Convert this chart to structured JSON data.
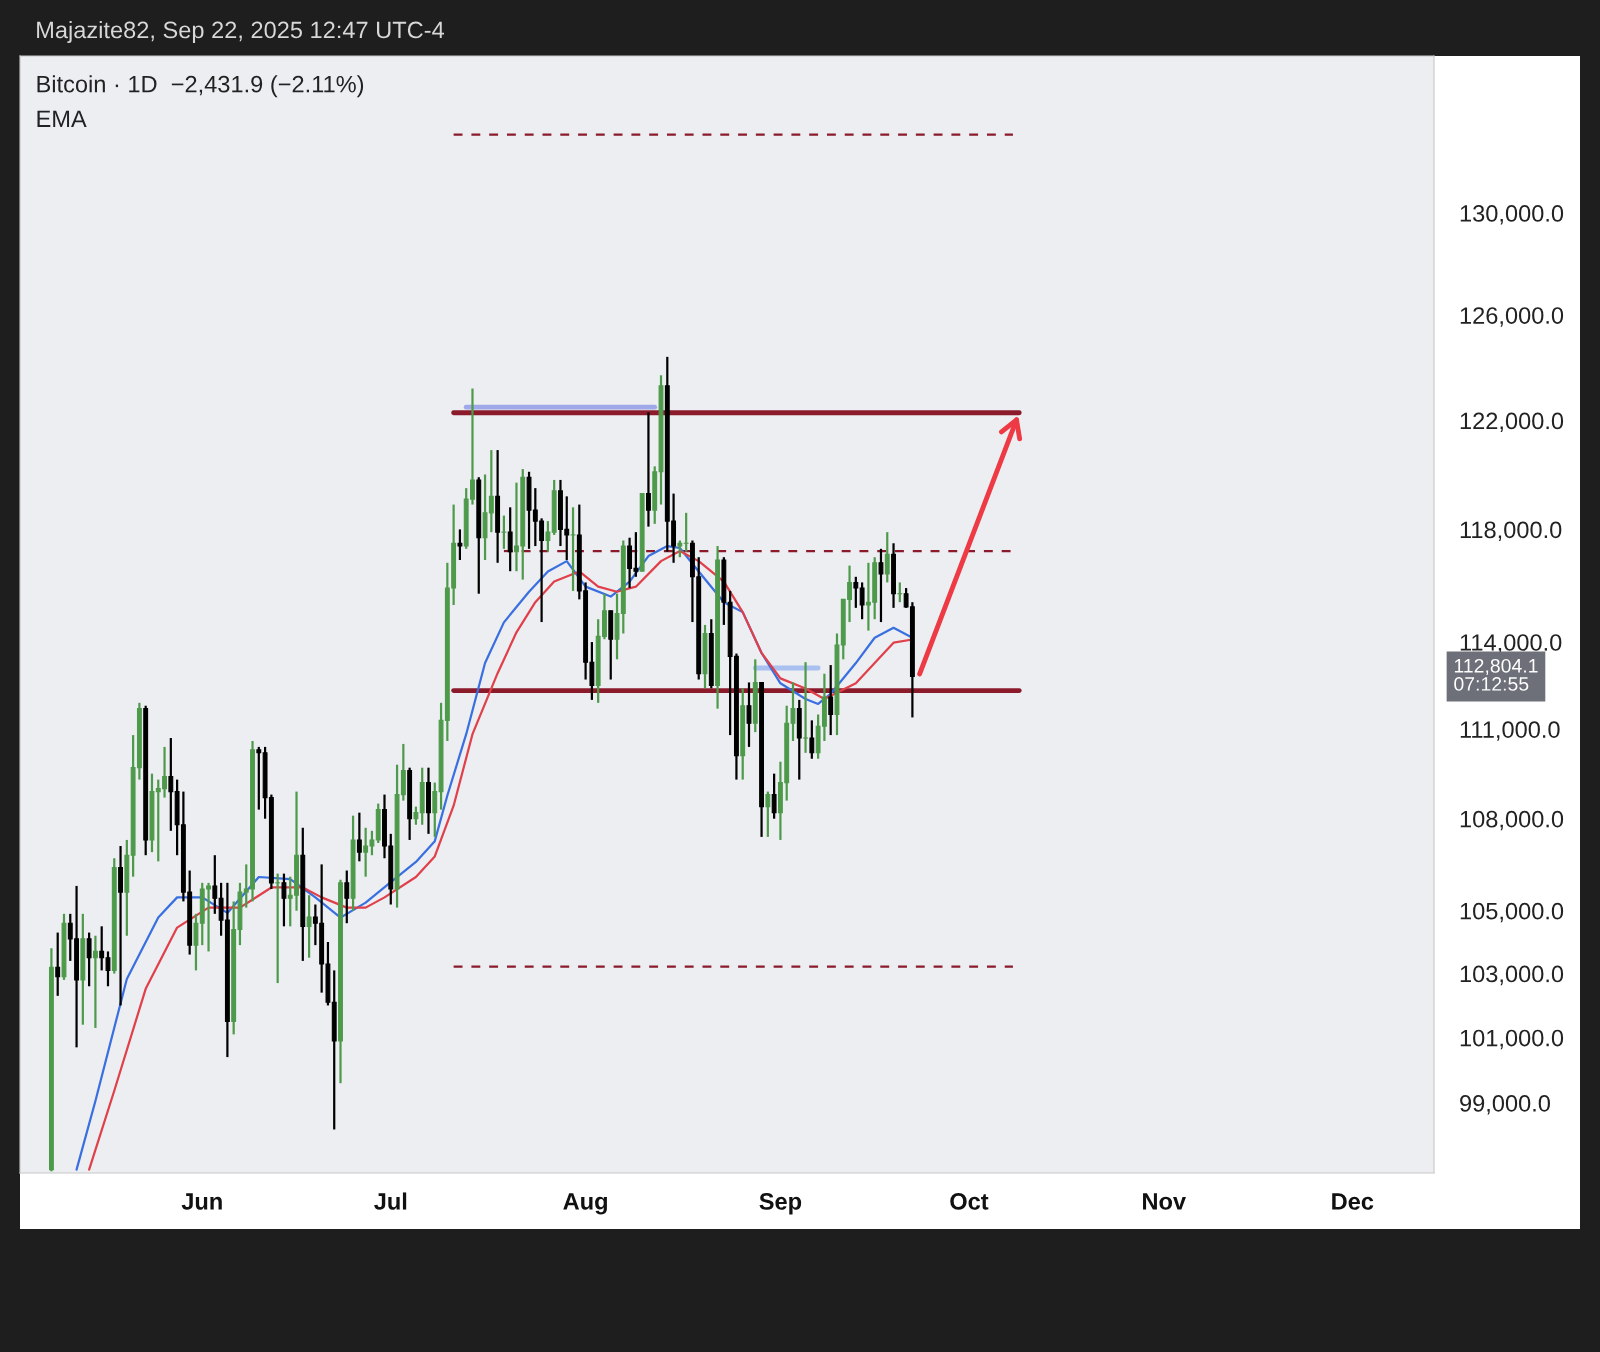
{
  "chart_data": {
    "type": "candlestick",
    "title": "Bitcoin · 1D  −2,431.9 (−2.11%)",
    "subtitle": "EMA",
    "annotations": [
      "Majazite82, Sep 22, 2025 12:47 UTC-4",
      "112,804.1\n07:12:55"
    ],
    "colors": [
      "#4e9a4b",
      "#000000",
      "#4e9a4b",
      "#000000",
      "#000000",
      "#4e9a4b",
      "#000000",
      "#4e9a4b",
      "#000000",
      "#000000",
      "#4e9a4b",
      "#000000",
      "#4e9a4b",
      "#4e9a4b",
      "#4e9a4b",
      "#000000",
      "#4e9a4b",
      "#4e9a4b",
      "#4e9a4b",
      "#000000",
      "#000000",
      "#000000",
      "#000000",
      "#4e9a4b",
      "#4e9a4b",
      "#4e9a4b",
      "#000000",
      "#000000",
      "#000000",
      "#4e9a4b",
      "#4e9a4b",
      "#4e9a4b",
      "#4e9a4b",
      "#000000",
      "#000000",
      "#000000",
      "#4e9a4b",
      "#000000",
      "#4e9a4b",
      "#4e9a4b",
      "#000000",
      "#4e9a4b",
      "#000000",
      "#000000",
      "#000000",
      "#000000",
      "#4e9a4b",
      "#000000",
      "#4e9a4b",
      "#000000",
      "#4e9a4b",
      "#4e9a4b",
      "#4e9a4b",
      "#000000",
      "#000000",
      "#4e9a4b",
      "#4e9a4b",
      "#000000",
      "#4e9a4b",
      "#4e9a4b",
      "#000000",
      "#4e9a4b",
      "#4e9a4b",
      "#4e9a4b",
      "#4e9a4b",
      "#000000",
      "#4e9a4b",
      "#4e9a4b",
      "#000000",
      "#4e9a4b",
      "#4e9a4b",
      "#000000",
      "#4e9a4b",
      "#000000",
      "#4e9a4b",
      "#4e9a4b",
      "#000000",
      "#000000",
      "#000000",
      "#4e9a4b",
      "#4e9a4b",
      "#000000",
      "#000000",
      "#4e9a4b",
      "#000000",
      "#000000",
      "#000000",
      "#4e9a4b",
      "#4e9a4b",
      "#000000",
      "#4e9a4b",
      "#4e9a4b",
      "#000000",
      "#000000",
      "#4e9a4b",
      "#000000",
      "#4e9a4b",
      "#4e9a4b",
      "#000000",
      "#000000",
      "#4e9a4b",
      "#4e9a4b",
      "#000000",
      "#000000",
      "#4e9a4b",
      "#000000",
      "#4e9a4b",
      "#000000",
      "#000000",
      "#000000",
      "#4e9a4b",
      "#000000",
      "#4e9a4b",
      "#000000",
      "#4e9a4b",
      "#000000",
      "#4e9a4b",
      "#4e9a4b",
      "#4e9a4b",
      "#000000",
      "#4e9a4b",
      "#000000",
      "#4e9a4b",
      "#4e9a4b",
      "#000000",
      "#4e9a4b",
      "#4e9a4b",
      "#4e9a4b",
      "#000000",
      "#000000",
      "#4e9a4b",
      "#4e9a4b",
      "#000000",
      "#4e9a4b",
      "#000000",
      "#4e9a4b",
      "#000000",
      "#000000"
    ],
    "log": true,
    "x": [
      "2025-05-08",
      "2025-05-09",
      "2025-05-10",
      "2025-05-11",
      "2025-05-12",
      "2025-05-13",
      "2025-05-14",
      "2025-05-15",
      "2025-05-16",
      "2025-05-17",
      "2025-05-18",
      "2025-05-19",
      "2025-05-20",
      "2025-05-21",
      "2025-05-22",
      "2025-05-23",
      "2025-05-24",
      "2025-05-25",
      "2025-05-26",
      "2025-05-27",
      "2025-05-28",
      "2025-05-29",
      "2025-05-30",
      "2025-05-31",
      "2025-06-01",
      "2025-06-02",
      "2025-06-03",
      "2025-06-04",
      "2025-06-05",
      "2025-06-06",
      "2025-06-07",
      "2025-06-08",
      "2025-06-09",
      "2025-06-10",
      "2025-06-11",
      "2025-06-12",
      "2025-06-13",
      "2025-06-14",
      "2025-06-15",
      "2025-06-16",
      "2025-06-17",
      "2025-06-18",
      "2025-06-19",
      "2025-06-20",
      "2025-06-21",
      "2025-06-22",
      "2025-06-23",
      "2025-06-24",
      "2025-06-25",
      "2025-06-26",
      "2025-06-27",
      "2025-06-28",
      "2025-06-29",
      "2025-06-30",
      "2025-07-01",
      "2025-07-02",
      "2025-07-03",
      "2025-07-04",
      "2025-07-05",
      "2025-07-06",
      "2025-07-07",
      "2025-07-08",
      "2025-07-09",
      "2025-07-10",
      "2025-07-11",
      "2025-07-12",
      "2025-07-13",
      "2025-07-14",
      "2025-07-15",
      "2025-07-16",
      "2025-07-17",
      "2025-07-18",
      "2025-07-19",
      "2025-07-20",
      "2025-07-21",
      "2025-07-22",
      "2025-07-23",
      "2025-07-24",
      "2025-07-25",
      "2025-07-26",
      "2025-07-27",
      "2025-07-28",
      "2025-07-29",
      "2025-07-30",
      "2025-07-31",
      "2025-08-01",
      "2025-08-02",
      "2025-08-03",
      "2025-08-04",
      "2025-08-05",
      "2025-08-06",
      "2025-08-07",
      "2025-08-08",
      "2025-08-09",
      "2025-08-10",
      "2025-08-11",
      "2025-08-12",
      "2025-08-13",
      "2025-08-14",
      "2025-08-15",
      "2025-08-16",
      "2025-08-17",
      "2025-08-18",
      "2025-08-19",
      "2025-08-20",
      "2025-08-21",
      "2025-08-22",
      "2025-08-23",
      "2025-08-24",
      "2025-08-25",
      "2025-08-26",
      "2025-08-27",
      "2025-08-28",
      "2025-08-29",
      "2025-08-30",
      "2025-08-31",
      "2025-09-01",
      "2025-09-02",
      "2025-09-03",
      "2025-09-04",
      "2025-09-05",
      "2025-09-06",
      "2025-09-07",
      "2025-09-08",
      "2025-09-09",
      "2025-09-10",
      "2025-09-11",
      "2025-09-12",
      "2025-09-13",
      "2025-09-14",
      "2025-09-15",
      "2025-09-16",
      "2025-09-17",
      "2025-09-18",
      "2025-09-19",
      "2025-09-20",
      "2025-09-21",
      "2025-09-22"
    ],
    "ohlc": [
      [
        97000,
        103800,
        96950,
        103200
      ],
      [
        103200,
        104300,
        102300,
        102900
      ],
      [
        102900,
        104900,
        102800,
        104600
      ],
      [
        104600,
        104900,
        103400,
        104100
      ],
      [
        104100,
        105800,
        100700,
        102800
      ],
      [
        102800,
        104900,
        101400,
        104100
      ],
      [
        104100,
        104300,
        102600,
        103500
      ],
      [
        103500,
        104200,
        101300,
        103700
      ],
      [
        103700,
        104500,
        103100,
        103500
      ],
      [
        103500,
        103700,
        102600,
        103100
      ],
      [
        103100,
        106700,
        103000,
        106400
      ],
      [
        106400,
        107100,
        102000,
        105600
      ],
      [
        105600,
        107300,
        104200,
        106800
      ],
      [
        106800,
        110800,
        106100,
        109700
      ],
      [
        109700,
        111900,
        109300,
        111700
      ],
      [
        111700,
        111800,
        106800,
        107300
      ],
      [
        107300,
        109500,
        106900,
        108900
      ],
      [
        108900,
        109300,
        106600,
        109000
      ],
      [
        109000,
        110400,
        108700,
        109400
      ],
      [
        109400,
        110700,
        107600,
        108900
      ],
      [
        108900,
        109300,
        106800,
        107800
      ],
      [
        107800,
        108900,
        105300,
        105600
      ],
      [
        105600,
        106300,
        103600,
        103900
      ],
      [
        103900,
        104900,
        103100,
        104600
      ],
      [
        104600,
        105900,
        103900,
        105700
      ],
      [
        105700,
        105900,
        103700,
        105800
      ],
      [
        105800,
        106800,
        104900,
        105400
      ],
      [
        105400,
        105900,
        104200,
        104700
      ],
      [
        104700,
        105900,
        100400,
        101500
      ],
      [
        101500,
        105300,
        101100,
        104400
      ],
      [
        104400,
        105900,
        103900,
        105600
      ],
      [
        105600,
        106500,
        105100,
        105700
      ],
      [
        105700,
        110600,
        105300,
        110300
      ],
      [
        110300,
        110400,
        108300,
        110200
      ],
      [
        110200,
        110400,
        108000,
        108700
      ],
      [
        108700,
        108800,
        105700,
        105900
      ],
      [
        105900,
        106200,
        102700,
        105900
      ],
      [
        105900,
        106200,
        104500,
        105400
      ],
      [
        105400,
        106100,
        104500,
        105500
      ],
      [
        105500,
        108900,
        105000,
        106800
      ],
      [
        106800,
        107700,
        103400,
        104500
      ],
      [
        104500,
        105500,
        103500,
        104800
      ],
      [
        104800,
        105200,
        103900,
        104600
      ],
      [
        104600,
        106500,
        102400,
        103300
      ],
      [
        103300,
        104000,
        102000,
        102100
      ],
      [
        102100,
        103100,
        98200,
        100900
      ],
      [
        100900,
        106000,
        99600,
        105900
      ],
      [
        105900,
        106300,
        104600,
        105400
      ],
      [
        105400,
        108100,
        105000,
        107300
      ],
      [
        107300,
        108200,
        106600,
        106900
      ],
      [
        106900,
        107700,
        106100,
        107100
      ],
      [
        107100,
        107600,
        106800,
        107300
      ],
      [
        107300,
        108500,
        107200,
        108300
      ],
      [
        108300,
        108800,
        106700,
        107100
      ],
      [
        107100,
        107500,
        105200,
        105700
      ],
      [
        105700,
        109800,
        105100,
        108800
      ],
      [
        108800,
        110500,
        108600,
        109600
      ],
      [
        109600,
        109700,
        107300,
        108000
      ],
      [
        108000,
        108400,
        107800,
        108200
      ],
      [
        108200,
        109700,
        107800,
        109200
      ],
      [
        109200,
        109700,
        107500,
        108200
      ],
      [
        108200,
        109200,
        107400,
        108900
      ],
      [
        108900,
        111900,
        108300,
        111300
      ],
      [
        111300,
        116800,
        110600,
        115900
      ],
      [
        115900,
        118900,
        115300,
        117500
      ],
      [
        117500,
        118000,
        116900,
        117400
      ],
      [
        117400,
        119500,
        117300,
        119100
      ],
      [
        119100,
        123200,
        118900,
        119800
      ],
      [
        119800,
        119900,
        115700,
        117700
      ],
      [
        117700,
        120000,
        116900,
        118600
      ],
      [
        118600,
        120900,
        117900,
        119200
      ],
      [
        119200,
        120900,
        116800,
        117900
      ],
      [
        117900,
        118500,
        117300,
        117900
      ],
      [
        117900,
        118800,
        116500,
        117200
      ],
      [
        117200,
        119700,
        116500,
        117400
      ],
      [
        117400,
        120200,
        116200,
        119900
      ],
      [
        119900,
        120100,
        117300,
        118700
      ],
      [
        118700,
        119500,
        117400,
        118300
      ],
      [
        118300,
        118400,
        114700,
        117600
      ],
      [
        117600,
        118300,
        117200,
        117900
      ],
      [
        117900,
        119800,
        117800,
        119400
      ],
      [
        119400,
        119800,
        117400,
        118000
      ],
      [
        118000,
        119200,
        116900,
        117800
      ],
      [
        117800,
        118800,
        115800,
        117800
      ],
      [
        117800,
        118900,
        115500,
        115800
      ],
      [
        115800,
        116100,
        112700,
        113300
      ],
      [
        113300,
        114000,
        112000,
        112500
      ],
      [
        112500,
        114800,
        111900,
        114200
      ],
      [
        114200,
        115700,
        114100,
        115100
      ],
      [
        115100,
        115100,
        112700,
        114100
      ],
      [
        114100,
        115700,
        113400,
        115000
      ],
      [
        115000,
        117600,
        114300,
        117400
      ],
      [
        117400,
        117700,
        115900,
        116600
      ],
      [
        116600,
        117900,
        116300,
        116500
      ],
      [
        116500,
        119300,
        116500,
        119300
      ],
      [
        119300,
        122300,
        118100,
        118700
      ],
      [
        118700,
        120300,
        118200,
        120100
      ],
      [
        120100,
        123700,
        118900,
        123300
      ],
      [
        123300,
        124400,
        117200,
        118300
      ],
      [
        118300,
        119300,
        116800,
        117400
      ],
      [
        117400,
        117600,
        117000,
        117500
      ],
      [
        117500,
        118600,
        117200,
        117500
      ],
      [
        117500,
        117600,
        114700,
        116300
      ],
      [
        116300,
        117000,
        112700,
        112900
      ],
      [
        112900,
        114600,
        112400,
        114300
      ],
      [
        114300,
        114800,
        112400,
        112500
      ],
      [
        112500,
        117400,
        111700,
        116900
      ],
      [
        116900,
        117000,
        114600,
        115400
      ],
      [
        115400,
        115800,
        110800,
        113500
      ],
      [
        113500,
        113600,
        109300,
        110100
      ],
      [
        110100,
        112400,
        109300,
        111800
      ],
      [
        111800,
        112600,
        110400,
        111200
      ],
      [
        111200,
        113400,
        110900,
        112600
      ],
      [
        112600,
        112600,
        107400,
        108400
      ],
      [
        108400,
        108900,
        107400,
        108800
      ],
      [
        108800,
        109500,
        108000,
        108200
      ],
      [
        108200,
        109900,
        107300,
        109200
      ],
      [
        109200,
        111800,
        108600,
        111200
      ],
      [
        111200,
        112600,
        110600,
        111700
      ],
      [
        111700,
        112000,
        109300,
        110700
      ],
      [
        110700,
        113300,
        110200,
        110700
      ],
      [
        110700,
        111300,
        110000,
        110200
      ],
      [
        110200,
        111500,
        110000,
        111100
      ],
      [
        111100,
        112900,
        110600,
        112100
      ],
      [
        112100,
        113200,
        110800,
        111500
      ],
      [
        111500,
        114300,
        110800,
        113900
      ],
      [
        113900,
        115500,
        113400,
        115500
      ],
      [
        115500,
        116700,
        114700,
        116100
      ],
      [
        116100,
        116300,
        115200,
        115900
      ],
      [
        115900,
        116100,
        114800,
        115300
      ],
      [
        115300,
        116800,
        114400,
        115400
      ],
      [
        115400,
        117000,
        114800,
        116800
      ],
      [
        116800,
        117300,
        114700,
        116400
      ],
      [
        116400,
        117900,
        116100,
        117100
      ],
      [
        117100,
        117500,
        115200,
        115700
      ],
      [
        115700,
        116100,
        115400,
        115700
      ],
      [
        115700,
        115900,
        115200,
        115236
      ],
      [
        115236,
        115400,
        111400,
        112804.1
      ]
    ],
    "series": [
      {
        "type": "line",
        "color": "#3a6fe0",
        "x": [
          "2025-05-12",
          "2025-05-15",
          "2025-05-20",
          "2025-05-25",
          "2025-05-28",
          "2025-06-01",
          "2025-06-05",
          "2025-06-10",
          "2025-06-15",
          "2025-06-19",
          "2025-06-23",
          "2025-06-27",
          "2025-07-01",
          "2025-07-05",
          "2025-07-08",
          "2025-07-10",
          "2025-07-13",
          "2025-07-16",
          "2025-07-19",
          "2025-07-23",
          "2025-07-26",
          "2025-07-29",
          "2025-08-01",
          "2025-08-05",
          "2025-08-08",
          "2025-08-11",
          "2025-08-14",
          "2025-08-16",
          "2025-08-19",
          "2025-08-23",
          "2025-08-26",
          "2025-08-29",
          "2025-09-01",
          "2025-09-05",
          "2025-09-07",
          "2025-09-09",
          "2025-09-13",
          "2025-09-16",
          "2025-09-19",
          "2025-09-22"
        ],
        "values": [
          97000,
          99060,
          102830,
          104780,
          105430,
          105430,
          104930,
          106090,
          106020,
          105430,
          104780,
          105260,
          105920,
          106580,
          107260,
          108770,
          110830,
          113270,
          114690,
          115770,
          116490,
          116860,
          115950,
          115600,
          116130,
          117040,
          117400,
          117330,
          116490,
          115400,
          115050,
          113620,
          112570,
          112030,
          111860,
          112210,
          113270,
          114150,
          114500,
          114150
        ]
      },
      {
        "type": "line",
        "color": "#e0404a",
        "x": [
          "2025-05-14",
          "2025-05-18",
          "2025-05-23",
          "2025-05-28",
          "2025-06-02",
          "2025-06-07",
          "2025-06-12",
          "2025-06-17",
          "2025-06-20",
          "2025-06-24",
          "2025-06-27",
          "2025-06-30",
          "2025-07-05",
          "2025-07-08",
          "2025-07-11",
          "2025-07-14",
          "2025-07-18",
          "2025-07-21",
          "2025-07-24",
          "2025-07-27",
          "2025-07-31",
          "2025-08-03",
          "2025-08-06",
          "2025-08-09",
          "2025-08-13",
          "2025-08-16",
          "2025-08-19",
          "2025-08-23",
          "2025-08-26",
          "2025-08-29",
          "2025-09-01",
          "2025-09-05",
          "2025-09-08",
          "2025-09-13",
          "2025-09-16",
          "2025-09-19",
          "2025-09-22"
        ],
        "values": [
          97000,
          99370,
          102520,
          104460,
          105100,
          105100,
          105750,
          105750,
          105430,
          105100,
          105100,
          105430,
          106090,
          106760,
          108430,
          110830,
          112920,
          114340,
          115400,
          116130,
          116490,
          115950,
          115770,
          115950,
          116860,
          117220,
          116860,
          116130,
          115050,
          113620,
          112740,
          112390,
          112030,
          112570,
          113270,
          113980,
          114090
        ]
      },
      {
        "type": "line",
        "color": "#8b1a2b",
        "line_style": "solid",
        "x": [
          "2025-07-11",
          "2025-10-09"
        ],
        "values": [
          122290,
          122290
        ]
      },
      {
        "type": "line",
        "color": "#8b1a2b",
        "line_style": "solid",
        "x": [
          "2025-07-11",
          "2025-10-09"
        ],
        "values": [
          112320,
          112320
        ]
      },
      {
        "type": "line",
        "color": "#8b1a2b",
        "line_style": "dashed",
        "x": [
          "2025-07-11",
          "2025-10-08"
        ],
        "values": [
          133160,
          133160
        ]
      },
      {
        "type": "line",
        "color": "#8b1a2b",
        "line_style": "dashed",
        "x": [
          "2025-07-19",
          "2025-10-08"
        ],
        "values": [
          117220,
          117220
        ]
      },
      {
        "type": "line",
        "color": "#8b1a2b",
        "line_style": "dashed",
        "x": [
          "2025-07-11",
          "2025-10-08"
        ],
        "values": [
          103220,
          103220
        ]
      },
      {
        "type": "line",
        "color": "#9fa8e8",
        "line_style": "solid",
        "x": [
          "2025-07-13",
          "2025-08-12"
        ],
        "values": [
          122500,
          122500
        ]
      },
      {
        "type": "line",
        "color": "#a9c0f0",
        "line_style": "solid",
        "x": [
          "2025-08-28",
          "2025-09-07"
        ],
        "values": [
          113100,
          113100
        ]
      }
    ],
    "xlim": [
      "2025-05-03",
      "2025-12-14"
    ],
    "xticks": [
      {
        "value": "2025-06-01",
        "label": "Jun"
      },
      {
        "value": "2025-07-01",
        "label": "Jul"
      },
      {
        "value": "2025-08-01",
        "label": "Aug"
      },
      {
        "value": "2025-09-01",
        "label": "Sep"
      },
      {
        "value": "2025-10-01",
        "label": "Oct"
      },
      {
        "value": "2025-11-01",
        "label": "Nov"
      },
      {
        "value": "2025-12-01",
        "label": "Dec"
      }
    ],
    "ylim": [
      96900,
      136400
    ],
    "yticks": [
      {
        "value": 99000,
        "label": "99,000.0"
      },
      {
        "value": 101000,
        "label": "101,000.0"
      },
      {
        "value": 103000,
        "label": "103,000.0"
      },
      {
        "value": 105000,
        "label": "105,000.0"
      },
      {
        "value": 108000,
        "label": "108,000.0"
      },
      {
        "value": 111000,
        "label": "111,000.0"
      },
      {
        "value": 114000,
        "label": "114,000.0"
      },
      {
        "value": 118000,
        "label": "118,000.0"
      },
      {
        "value": 122000,
        "label": "122,000.0"
      },
      {
        "value": 126000,
        "label": "126,000.0"
      },
      {
        "value": 130000,
        "label": "130,000.0"
      }
    ]
  }
}
